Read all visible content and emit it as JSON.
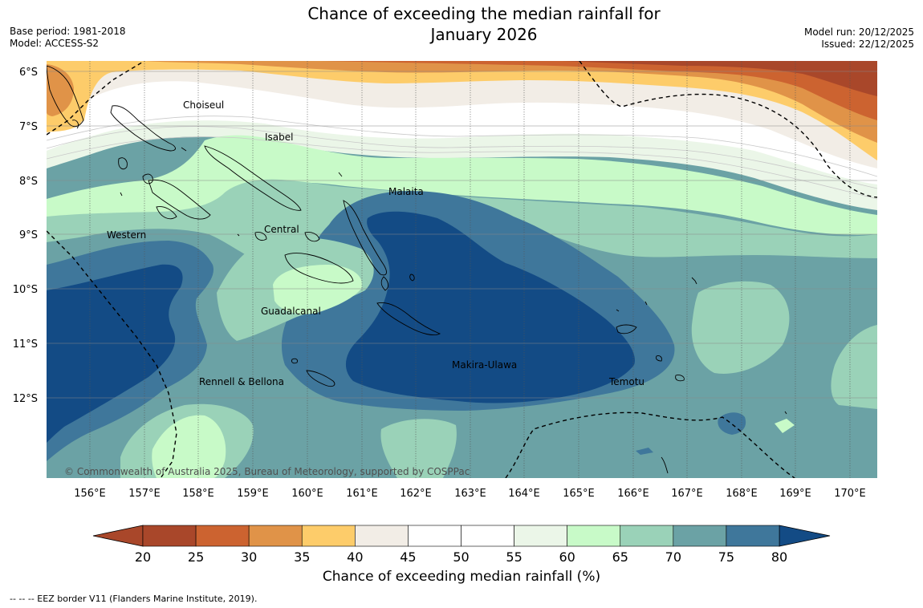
{
  "title_line1": "Chance of exceeding the median rainfall for",
  "title_line2": "January 2026",
  "base_period": "Base period: 1981-2018",
  "model": "Model: ACCESS-S2",
  "model_run": "Model run: 20/12/2025",
  "issued": "Issued: 22/12/2025",
  "copyright": "© Commonwealth of Australia 2025, Bureau of Meteorology, supported by COSPPac",
  "colorbar": {
    "title": "Chance of exceeding median rainfall (%)",
    "ticks": [
      "20",
      "25",
      "30",
      "35",
      "40",
      "45",
      "50",
      "55",
      "60",
      "65",
      "70",
      "75",
      "80"
    ],
    "colors": [
      "#a9472a",
      "#cc6330",
      "#e09348",
      "#fdcc6a",
      "#f2ede6",
      "#ffffff",
      "#ffffff",
      "#ebf6e8",
      "#c8fac8",
      "#9ad2b8",
      "#6ba2a5",
      "#3f779b",
      "#134b85"
    ],
    "under_color": "#a9472a",
    "over_color": "#134b85"
  },
  "axes": {
    "lat_labels": [
      "6°S",
      "7°S",
      "8°S",
      "9°S",
      "10°S",
      "11°S",
      "12°S"
    ],
    "lon_labels": [
      "156°E",
      "157°E",
      "158°E",
      "159°E",
      "160°E",
      "161°E",
      "162°E",
      "163°E",
      "164°E",
      "165°E",
      "166°E",
      "167°E",
      "168°E",
      "169°E",
      "170°E"
    ]
  },
  "regions": {
    "choiseul": "Choiseul",
    "isabel": "Isabel",
    "malaita": "Malaita",
    "central": "Central",
    "western": "Western",
    "guadalcanal": "Guadalcanal",
    "makira": "Makira-Ulawa",
    "rennell": "Rennell & Bellona",
    "temotu": "Temotu"
  },
  "footnote": "--  --  -- EEZ border V11 (Flanders Marine Institute, 2019)."
}
